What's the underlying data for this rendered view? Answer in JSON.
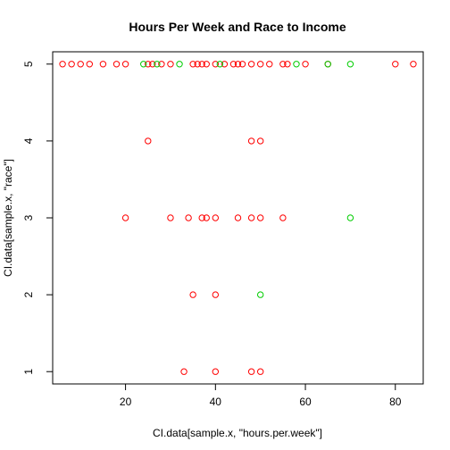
{
  "chart_data": {
    "type": "scatter",
    "title": "Hours Per Week and Race to Income",
    "xlabel": "CI.data[sample.x, \"hours.per.week\"]",
    "ylabel": "CI.data[sample.x, \"race\"]",
    "xlim": [
      3.8,
      86.2
    ],
    "ylim": [
      0.84,
      5.16
    ],
    "x_ticks": [
      20,
      40,
      60,
      80
    ],
    "y_ticks": [
      1,
      2,
      3,
      4,
      5
    ],
    "grid": false,
    "legend": "none",
    "colors": {
      "red": "#ff0000",
      "green": "#00cd00",
      "axes": "#000000"
    },
    "series": [
      {
        "color": "red",
        "points": [
          {
            "x": 6,
            "y": 5
          },
          {
            "x": 8,
            "y": 5
          },
          {
            "x": 10,
            "y": 5
          },
          {
            "x": 12,
            "y": 5
          },
          {
            "x": 15,
            "y": 5
          },
          {
            "x": 18,
            "y": 5
          },
          {
            "x": 20,
            "y": 5
          },
          {
            "x": 25,
            "y": 5
          },
          {
            "x": 26,
            "y": 5
          },
          {
            "x": 28,
            "y": 5
          },
          {
            "x": 30,
            "y": 5
          },
          {
            "x": 35,
            "y": 5
          },
          {
            "x": 36,
            "y": 5
          },
          {
            "x": 37,
            "y": 5
          },
          {
            "x": 38,
            "y": 5
          },
          {
            "x": 40,
            "y": 5
          },
          {
            "x": 42,
            "y": 5
          },
          {
            "x": 44,
            "y": 5
          },
          {
            "x": 45,
            "y": 5
          },
          {
            "x": 46,
            "y": 5
          },
          {
            "x": 48,
            "y": 5
          },
          {
            "x": 50,
            "y": 5
          },
          {
            "x": 52,
            "y": 5
          },
          {
            "x": 55,
            "y": 5
          },
          {
            "x": 56,
            "y": 5
          },
          {
            "x": 60,
            "y": 5
          },
          {
            "x": 65,
            "y": 5
          },
          {
            "x": 80,
            "y": 5
          },
          {
            "x": 84,
            "y": 5
          },
          {
            "x": 25,
            "y": 4
          },
          {
            "x": 48,
            "y": 4
          },
          {
            "x": 50,
            "y": 4
          },
          {
            "x": 20,
            "y": 3
          },
          {
            "x": 30,
            "y": 3
          },
          {
            "x": 34,
            "y": 3
          },
          {
            "x": 37,
            "y": 3
          },
          {
            "x": 38,
            "y": 3
          },
          {
            "x": 40,
            "y": 3
          },
          {
            "x": 45,
            "y": 3
          },
          {
            "x": 48,
            "y": 3
          },
          {
            "x": 50,
            "y": 3
          },
          {
            "x": 55,
            "y": 3
          },
          {
            "x": 35,
            "y": 2
          },
          {
            "x": 40,
            "y": 2
          },
          {
            "x": 33,
            "y": 1
          },
          {
            "x": 40,
            "y": 1
          },
          {
            "x": 48,
            "y": 1
          },
          {
            "x": 50,
            "y": 1
          }
        ]
      },
      {
        "color": "green",
        "points": [
          {
            "x": 24,
            "y": 5
          },
          {
            "x": 27,
            "y": 5
          },
          {
            "x": 32,
            "y": 5
          },
          {
            "x": 41,
            "y": 5
          },
          {
            "x": 58,
            "y": 5
          },
          {
            "x": 65,
            "y": 5
          },
          {
            "x": 70,
            "y": 5
          },
          {
            "x": 70,
            "y": 3
          },
          {
            "x": 50,
            "y": 2
          }
        ]
      }
    ]
  }
}
